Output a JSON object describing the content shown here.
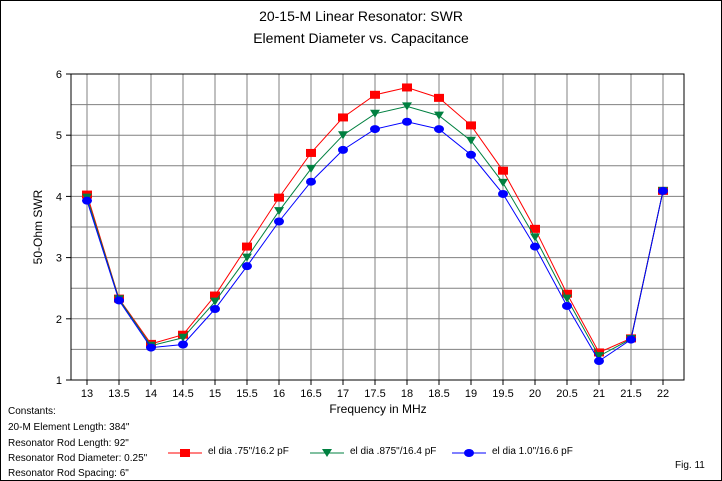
{
  "chart_data": {
    "type": "line",
    "title": "20-15-M Linear Resonator: SWR",
    "subtitle": "Element Diameter vs. Capacitance",
    "xlabel": "Frequency in MHz",
    "ylabel": "50-Ohm SWR",
    "ylim": [
      1,
      6
    ],
    "xlim": [
      13,
      22
    ],
    "grid": true,
    "legend_placement": "bottom",
    "x": [
      13,
      13.5,
      14,
      14.5,
      15,
      15.5,
      16,
      16.5,
      17,
      17.5,
      18,
      18.5,
      19,
      19.5,
      20,
      20.5,
      21,
      21.5,
      22
    ],
    "x_tick_labels": [
      "13",
      "13.5",
      "14",
      "14.5",
      "15",
      "15.5",
      "16",
      "16.5",
      "17",
      "17.5",
      "18",
      "18.5",
      "19",
      "19.5",
      "20",
      "20.5",
      "21",
      "21.5",
      "22"
    ],
    "y_ticks": [
      1,
      2,
      3,
      4,
      5,
      6
    ],
    "y_tick_labels": [
      "1",
      "2",
      "3",
      "4",
      "5",
      "6"
    ],
    "series": [
      {
        "name": "el dia .75\"/16.2 pF",
        "color": "#ff0000",
        "marker": "square",
        "values": [
          4.03,
          2.33,
          1.59,
          1.74,
          2.38,
          3.18,
          3.98,
          4.71,
          5.29,
          5.66,
          5.78,
          5.61,
          5.16,
          4.42,
          3.47,
          2.41,
          1.45,
          1.68,
          4.09
        ]
      },
      {
        "name": "el dia .875\"/16.4 pF",
        "color": "#008040",
        "marker": "triangle-down",
        "values": [
          3.98,
          2.32,
          1.56,
          1.69,
          2.28,
          3.0,
          3.76,
          4.45,
          5.0,
          5.35,
          5.47,
          5.32,
          4.91,
          4.22,
          3.33,
          2.33,
          1.39,
          1.67,
          4.09
        ]
      },
      {
        "name": "el dia 1.0\"/16.6 pF",
        "color": "#0000ff",
        "marker": "circle",
        "values": [
          3.93,
          2.3,
          1.53,
          1.58,
          2.16,
          2.86,
          3.59,
          4.24,
          4.76,
          5.1,
          5.22,
          5.1,
          4.68,
          4.04,
          3.18,
          2.21,
          1.31,
          1.66,
          4.09
        ]
      }
    ]
  },
  "constants": {
    "heading": "Constants:",
    "lines": [
      "20-M Element Length: 384\"",
      "Resonator Rod Length: 92\"",
      "Resonator Rod Diameter: 0.25\"",
      "Resonator Rod Spacing: 6\""
    ]
  },
  "figure_label": "Fig. 11"
}
